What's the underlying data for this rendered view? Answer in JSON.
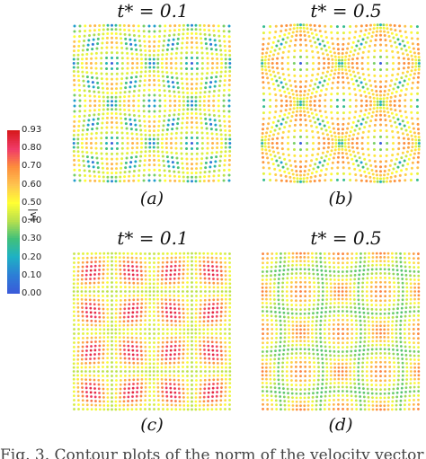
{
  "figure": {
    "panels": [
      {
        "id": "a",
        "title": "t* = 0.1",
        "label": "(a)",
        "pattern": "time-0.1-strong"
      },
      {
        "id": "b",
        "title": "t* = 0.5",
        "label": "(b)",
        "pattern": "time-0.5-strong"
      },
      {
        "id": "c",
        "title": "t* = 0.1",
        "label": "(c)",
        "pattern": "time-0.1-weak"
      },
      {
        "id": "d",
        "title": "t* = 0.5",
        "label": "(d)",
        "pattern": "time-0.5-weak"
      }
    ],
    "colorbar": {
      "label": "|v|",
      "ticks": [
        "0.93",
        "0.80",
        "0.70",
        "0.60",
        "0.50",
        "0.40",
        "0.30",
        "0.20",
        "0.10",
        "0.00"
      ],
      "colors": [
        "#d7191c",
        "#f03b68",
        "#fd8d3c",
        "#fec44f",
        "#ffff33",
        "#b8e04d",
        "#41c07a",
        "#1eb1c4",
        "#2c7fd6",
        "#3a5bd9"
      ]
    },
    "caption": "Fig. 3.  Contour plots of the norm of the velocity vector"
  }
}
